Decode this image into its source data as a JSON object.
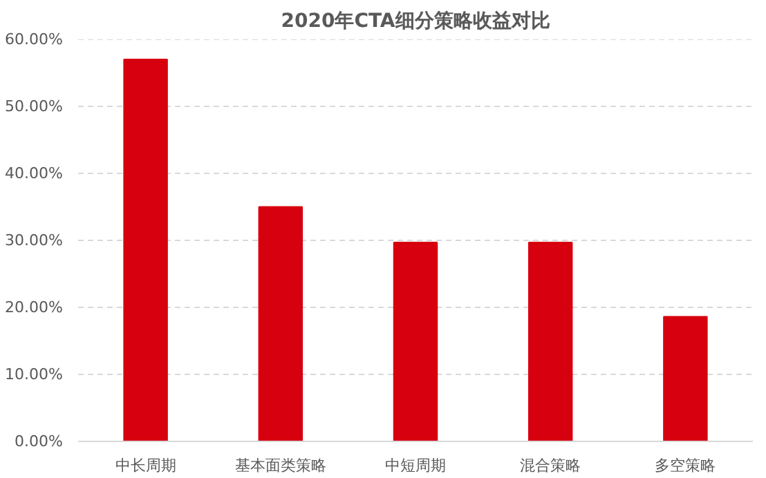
{
  "chart_data": {
    "type": "bar",
    "title": "2020年CTA细分策略收益对比",
    "categories": [
      "中长周期",
      "基本面类策略",
      "中短周期",
      "混合策略",
      "多空策略"
    ],
    "values": [
      57.0,
      35.0,
      29.7,
      29.7,
      18.6
    ],
    "color": "#d7000f",
    "ylim": [
      0,
      60
    ],
    "yticks": [
      {
        "value": 0,
        "label": "0.00%"
      },
      {
        "value": 10,
        "label": "10.00%"
      },
      {
        "value": 20,
        "label": "20.00%"
      },
      {
        "value": 30,
        "label": "30.00%"
      },
      {
        "value": 40,
        "label": "40.00%"
      },
      {
        "value": 50,
        "label": "50.00%"
      },
      {
        "value": 60,
        "label": "60.00%"
      }
    ],
    "grid": "y"
  }
}
